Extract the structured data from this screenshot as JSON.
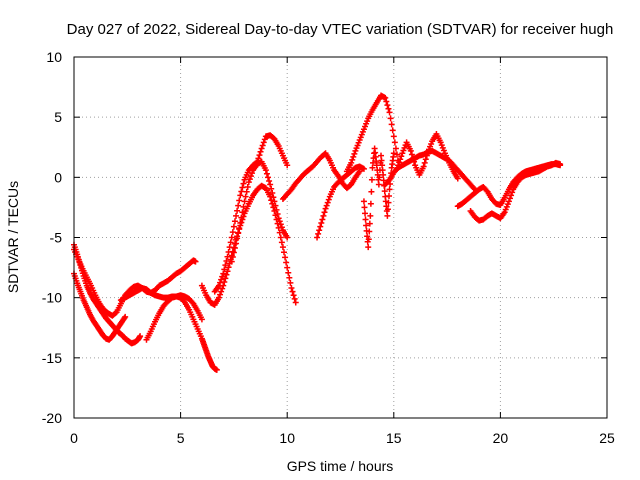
{
  "chart_data": {
    "type": "scatter",
    "title": "Day 027 of 2022, Sidereal Day-to-day VTEC variation (SDTVAR) for receiver hugh",
    "xlabel": "GPS time / hours",
    "ylabel": "SDTVAR / TECUs",
    "xlim": [
      0,
      25
    ],
    "ylim": [
      -20,
      10
    ],
    "xticks": [
      0,
      5,
      10,
      15,
      20,
      25
    ],
    "yticks": [
      -20,
      -15,
      -10,
      -5,
      0,
      5,
      10
    ],
    "x_tick_labels": [
      "0",
      "5",
      "10",
      "15",
      "20",
      "25"
    ],
    "y_tick_labels": [
      "-20",
      "-15",
      "-10",
      "-5",
      "0",
      "5",
      "10"
    ],
    "grid": true,
    "marker": "+",
    "series_color": "#ff0000",
    "series": [
      {
        "x": [
          0.0,
          0.2,
          0.4,
          0.6,
          0.8,
          1.0,
          1.2,
          1.4,
          1.6,
          1.8,
          2.0,
          2.2,
          2.4,
          2.6,
          2.8,
          3.0,
          3.2,
          3.4,
          3.6,
          3.8,
          4.0,
          4.2,
          4.4,
          4.6,
          4.8,
          5.0,
          5.2,
          5.4,
          5.6,
          5.7
        ],
        "y": [
          -6.0,
          -6.8,
          -7.6,
          -8.3,
          -9.0,
          -9.8,
          -10.5,
          -11.0,
          -11.3,
          -11.5,
          -11.2,
          -10.5,
          -9.8,
          -9.4,
          -9.1,
          -9.0,
          -9.2,
          -9.5,
          -9.6,
          -9.4,
          -9.0,
          -8.8,
          -8.6,
          -8.3,
          -8.0,
          -7.8,
          -7.5,
          -7.2,
          -6.9,
          -7.0
        ]
      },
      {
        "x": [
          0.0,
          0.15,
          0.3,
          0.45,
          0.6,
          0.75,
          0.9,
          1.05,
          1.2,
          1.35,
          1.5,
          1.65,
          1.8,
          1.95,
          2.1,
          2.25,
          2.4,
          2.55,
          2.7,
          2.85,
          3.0,
          3.1
        ],
        "y": [
          -5.6,
          -6.4,
          -7.3,
          -8.2,
          -9.0,
          -9.6,
          -10.1,
          -10.5,
          -10.9,
          -11.3,
          -11.7,
          -12.0,
          -12.3,
          -12.6,
          -12.9,
          -13.1,
          -13.4,
          -13.6,
          -13.8,
          -13.7,
          -13.5,
          -13.2
        ]
      },
      {
        "x": [
          0.0,
          0.15,
          0.3,
          0.45,
          0.6,
          0.75,
          0.9,
          1.05,
          1.2,
          1.35,
          1.5,
          1.65,
          1.8,
          1.95,
          2.1,
          2.25,
          2.4
        ],
        "y": [
          -8.0,
          -8.8,
          -9.5,
          -10.2,
          -10.8,
          -11.4,
          -11.9,
          -12.3,
          -12.7,
          -13.1,
          -13.4,
          -13.5,
          -13.2,
          -12.8,
          -12.4,
          -12.0,
          -11.6
        ]
      },
      {
        "x": [
          2.2,
          2.4,
          2.6,
          2.8,
          3.0,
          3.2,
          3.4,
          3.6,
          3.8,
          4.0,
          4.2,
          4.4,
          4.6,
          4.8,
          5.0,
          5.2,
          5.4,
          5.6,
          5.8,
          6.0,
          6.1,
          6.2,
          6.3,
          6.4,
          6.5,
          6.6,
          6.7
        ],
        "y": [
          -10.2,
          -10.0,
          -9.8,
          -9.6,
          -9.4,
          -9.2,
          -9.3,
          -9.6,
          -9.8,
          -9.9,
          -10.0,
          -10.0,
          -9.9,
          -9.9,
          -10.0,
          -10.4,
          -11.0,
          -11.8,
          -12.6,
          -13.4,
          -13.9,
          -14.4,
          -14.9,
          -15.3,
          -15.7,
          -15.9,
          -16.0
        ]
      },
      {
        "x": [
          3.4,
          3.6,
          3.8,
          4.0,
          4.2,
          4.4,
          4.6,
          4.8,
          5.0,
          5.2,
          5.4,
          5.6,
          5.8,
          6.0
        ],
        "y": [
          -13.5,
          -12.8,
          -12.0,
          -11.3,
          -10.7,
          -10.3,
          -10.0,
          -9.9,
          -9.8,
          -9.9,
          -10.1,
          -10.5,
          -11.1,
          -11.8
        ]
      },
      {
        "x": [
          6.0,
          6.2,
          6.4,
          6.6,
          6.8,
          7.0,
          7.2,
          7.4,
          7.6,
          7.8,
          8.0,
          8.2,
          8.4,
          8.6,
          8.8,
          9.0,
          9.2,
          9.4,
          9.6,
          9.8,
          10.0,
          10.2,
          10.4
        ],
        "y": [
          -9.0,
          -9.8,
          -10.4,
          -10.6,
          -10.0,
          -9.0,
          -7.8,
          -6.5,
          -5.2,
          -4.0,
          -3.0,
          -2.2,
          -1.5,
          -1.0,
          -0.7,
          -0.9,
          -1.6,
          -2.8,
          -4.2,
          -5.8,
          -7.5,
          -9.2,
          -10.4
        ]
      },
      {
        "x": [
          6.6,
          6.8,
          7.0,
          7.2,
          7.4,
          7.6,
          7.8,
          8.0,
          8.2,
          8.4,
          8.6,
          8.8,
          9.0,
          9.2,
          9.4,
          9.6,
          9.8,
          10.0
        ],
        "y": [
          -9.5,
          -9.0,
          -8.0,
          -6.6,
          -5.0,
          -3.2,
          -1.5,
          -0.2,
          0.6,
          1.0,
          1.3,
          2.4,
          3.4,
          3.5,
          3.2,
          2.6,
          1.8,
          1.0
        ]
      },
      {
        "x": [
          7.4,
          7.6,
          7.8,
          8.0,
          8.2,
          8.4,
          8.6,
          8.8,
          9.0,
          9.2,
          9.4,
          9.6,
          9.8,
          10.0
        ],
        "y": [
          -7.0,
          -5.5,
          -3.8,
          -2.0,
          -0.4,
          0.6,
          1.1,
          1.3,
          0.6,
          -0.6,
          -2.0,
          -3.4,
          -4.4,
          -5.0
        ]
      },
      {
        "x": [
          9.8,
          10.0,
          10.2,
          10.4,
          10.6,
          10.8,
          11.0,
          11.2,
          11.4,
          11.6,
          11.8,
          12.0,
          12.2,
          12.4,
          12.6,
          12.8,
          13.0,
          13.2,
          13.4
        ],
        "y": [
          -1.8,
          -1.4,
          -1.0,
          -0.5,
          -0.1,
          0.3,
          0.6,
          0.9,
          1.3,
          1.7,
          2.0,
          1.4,
          0.6,
          0.1,
          -0.5,
          -0.9,
          -0.6,
          0.0,
          0.5
        ]
      },
      {
        "x": [
          11.4,
          11.6,
          11.8,
          12.0,
          12.2,
          12.4,
          12.6,
          12.8,
          13.0,
          13.2,
          13.4,
          13.6
        ],
        "y": [
          -5.0,
          -3.8,
          -2.6,
          -1.6,
          -0.8,
          -0.4,
          -0.1,
          0.2,
          0.5,
          0.8,
          0.9,
          0.7
        ]
      },
      {
        "x": [
          12.8,
          13.0,
          13.2,
          13.4,
          13.6,
          13.8,
          14.0,
          14.2,
          14.4,
          14.6,
          14.8,
          15.0,
          15.2
        ],
        "y": [
          0.5,
          1.2,
          2.2,
          3.1,
          4.0,
          4.9,
          5.6,
          6.2,
          6.8,
          6.6,
          5.4,
          3.4,
          1.4
        ]
      },
      {
        "x": [
          13.6,
          13.7,
          13.8,
          13.9,
          14.0,
          14.1,
          14.2,
          14.3,
          14.4,
          14.5,
          14.6,
          14.7,
          14.8,
          14.9,
          15.0
        ],
        "y": [
          -2.0,
          -4.0,
          -5.8,
          -3.2,
          0.8,
          2.4,
          1.0,
          -0.6,
          1.8,
          0.2,
          -1.6,
          -3.2,
          -1.0,
          0.8,
          2.0
        ]
      },
      {
        "x": [
          14.6,
          14.8,
          15.0,
          15.2,
          15.4,
          15.6,
          15.8,
          16.0,
          16.2,
          16.4,
          16.6,
          16.8,
          17.0,
          17.2,
          17.4,
          17.6,
          17.8,
          18.0,
          18.2,
          18.4,
          18.6,
          18.8
        ],
        "y": [
          -0.6,
          -0.2,
          0.4,
          0.8,
          1.0,
          1.2,
          1.4,
          1.6,
          1.8,
          1.9,
          2.1,
          2.2,
          2.0,
          1.8,
          1.6,
          1.4,
          1.0,
          0.6,
          0.2,
          -0.2,
          -0.6,
          -1.0
        ]
      },
      {
        "x": [
          15.2,
          15.4,
          15.6,
          15.8,
          16.0,
          16.2,
          16.4,
          16.6,
          16.8,
          17.0,
          17.2,
          17.4,
          17.6,
          17.8,
          18.0
        ],
        "y": [
          1.0,
          2.0,
          2.9,
          2.2,
          1.0,
          0.2,
          0.9,
          2.1,
          3.0,
          3.6,
          2.9,
          2.0,
          1.2,
          0.5,
          -0.1
        ]
      },
      {
        "x": [
          18.0,
          18.2,
          18.4,
          18.6,
          18.8,
          19.0,
          19.2,
          19.4,
          19.6,
          19.8,
          20.0,
          20.2,
          20.4,
          20.6,
          20.8,
          21.0,
          21.2,
          21.4,
          21.6,
          21.8,
          22.0,
          22.2,
          22.4,
          22.6,
          22.8
        ],
        "y": [
          -2.4,
          -2.2,
          -1.9,
          -1.6,
          -1.3,
          -1.0,
          -0.8,
          -1.2,
          -1.8,
          -2.2,
          -2.3,
          -1.7,
          -1.0,
          -0.4,
          0.0,
          0.3,
          0.5,
          0.6,
          0.7,
          0.8,
          0.9,
          1.0,
          1.1,
          1.1,
          1.0
        ]
      },
      {
        "x": [
          18.6,
          18.8,
          19.0,
          19.2,
          19.4,
          19.6,
          19.8,
          20.0,
          20.2,
          20.4,
          20.6,
          20.8,
          21.0,
          21.2,
          21.4,
          21.6,
          21.8,
          22.0,
          22.2,
          22.4,
          22.6,
          22.8
        ],
        "y": [
          -2.8,
          -3.3,
          -3.6,
          -3.5,
          -3.2,
          -3.0,
          -3.2,
          -3.4,
          -2.9,
          -2.0,
          -1.0,
          -0.4,
          0.0,
          0.2,
          0.3,
          0.4,
          0.5,
          0.7,
          0.9,
          1.0,
          1.2,
          1.1
        ]
      }
    ]
  }
}
